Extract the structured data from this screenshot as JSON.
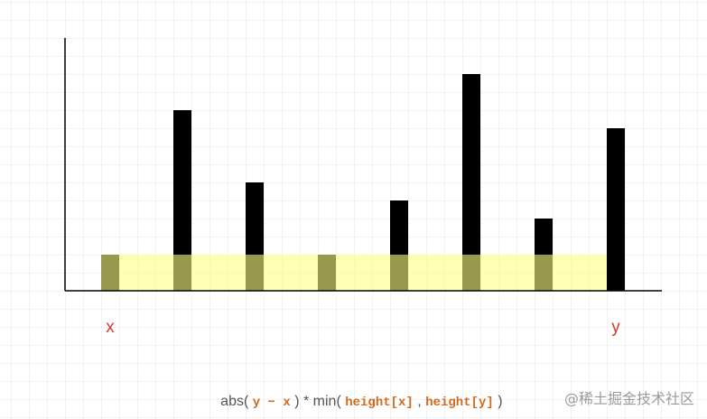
{
  "bars": {
    "heights": [
      2,
      10,
      6,
      2,
      5,
      12,
      4,
      9
    ]
  },
  "labels": {
    "left": "x",
    "right": "y"
  },
  "formula": {
    "parts": [
      "abs( ",
      "y − x",
      " ) * min( ",
      "height[x]",
      " , ",
      "height[y]",
      " )"
    ]
  },
  "watermark": "@稀土掘金技术社区"
}
